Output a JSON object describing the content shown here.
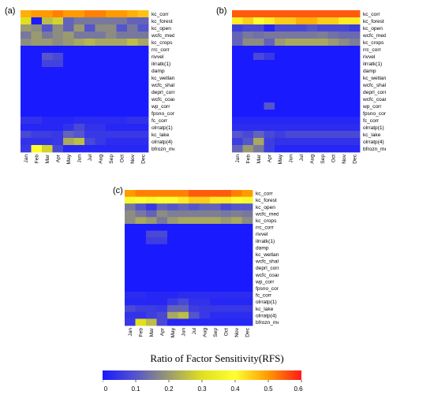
{
  "figure": {
    "colorbar_title": "Ratio of Factor Sensitivity(RFS)",
    "colorbar_ticks": [
      "0",
      "0.1",
      "0.2",
      "0.3",
      "0.4",
      "0.5",
      "0.6"
    ],
    "colorbar_range": [
      0,
      0.6
    ],
    "colorbar_colors": [
      "#1a1aff",
      "#5555cc",
      "#9a9a70",
      "#e0e020",
      "#ffff30",
      "#ff9a00",
      "#ff1a1a"
    ]
  },
  "chart_data": [
    {
      "type": "heatmap",
      "panel_label": "(a)",
      "months": [
        "Jan",
        "Feb",
        "Mar",
        "Apr",
        "May",
        "Jun",
        "Jul",
        "Aug",
        "Sep",
        "Oct",
        "Nov",
        "Dec"
      ],
      "factors": [
        "kc_corr",
        "kc_forest",
        "kc_open",
        "wcfc_medium",
        "kc_crops",
        "rrc_corr",
        "rivvel",
        "ilrratk(1)",
        "damp",
        "kc_wetland",
        "wcfc_shallow",
        "deprl_corr",
        "wcfc_coarse",
        "wp_corr",
        "fpsno_corr",
        "fc_corr",
        "olrratp(1)",
        "kc_lake",
        "olrratp(4)",
        "bfrozn_medium"
      ],
      "values": [
        [
          0.48,
          0.5,
          0.5,
          0.52,
          0.5,
          0.5,
          0.52,
          0.52,
          0.5,
          0.5,
          0.48,
          0.46
        ],
        [
          0.3,
          0.0,
          0.25,
          0.28,
          0.12,
          0.15,
          0.15,
          0.15,
          0.15,
          0.15,
          0.12,
          0.12
        ],
        [
          0.2,
          0.18,
          0.1,
          0.18,
          0.12,
          0.2,
          0.1,
          0.18,
          0.18,
          0.1,
          0.15,
          0.1
        ],
        [
          0.15,
          0.2,
          0.15,
          0.18,
          0.2,
          0.15,
          0.15,
          0.15,
          0.18,
          0.15,
          0.15,
          0.15
        ],
        [
          0.18,
          0.2,
          0.2,
          0.18,
          0.2,
          0.22,
          0.24,
          0.22,
          0.22,
          0.22,
          0.25,
          0.22
        ],
        [
          0.0,
          0.0,
          0.0,
          0.0,
          0.0,
          0.0,
          0.0,
          0.0,
          0.0,
          0.0,
          0.0,
          0.0
        ],
        [
          0.0,
          0.0,
          0.1,
          0.08,
          0.0,
          0.0,
          0.0,
          0.0,
          0.0,
          0.0,
          0.0,
          0.0
        ],
        [
          0.0,
          0.0,
          0.07,
          0.07,
          0.0,
          0.0,
          0.0,
          0.0,
          0.0,
          0.0,
          0.0,
          0.0
        ],
        [
          0.0,
          0.0,
          0.0,
          0.0,
          0.0,
          0.0,
          0.0,
          0.0,
          0.0,
          0.0,
          0.0,
          0.0
        ],
        [
          0.0,
          0.0,
          0.0,
          0.0,
          0.0,
          0.0,
          0.0,
          0.0,
          0.0,
          0.0,
          0.0,
          0.0
        ],
        [
          0.0,
          0.0,
          0.0,
          0.0,
          0.0,
          0.0,
          0.0,
          0.0,
          0.0,
          0.0,
          0.0,
          0.0
        ],
        [
          0.0,
          0.0,
          0.0,
          0.0,
          0.0,
          0.0,
          0.0,
          0.0,
          0.0,
          0.0,
          0.0,
          0.0
        ],
        [
          0.0,
          0.0,
          0.0,
          0.0,
          0.0,
          0.0,
          0.0,
          0.0,
          0.0,
          0.0,
          0.0,
          0.0
        ],
        [
          0.0,
          0.0,
          0.0,
          0.0,
          0.0,
          0.0,
          0.0,
          0.0,
          0.0,
          0.0,
          0.0,
          0.0
        ],
        [
          0.0,
          0.0,
          0.0,
          0.0,
          0.0,
          0.0,
          0.0,
          0.0,
          0.0,
          0.0,
          0.0,
          0.0
        ],
        [
          0.04,
          0.04,
          0.02,
          0.02,
          0.02,
          0.03,
          0.03,
          0.03,
          0.03,
          0.03,
          0.04,
          0.04
        ],
        [
          0.02,
          0.02,
          0.02,
          0.02,
          0.04,
          0.08,
          0.04,
          0.04,
          0.02,
          0.02,
          0.02,
          0.02
        ],
        [
          0.08,
          0.06,
          0.06,
          0.05,
          0.12,
          0.1,
          0.05,
          0.05,
          0.05,
          0.05,
          0.05,
          0.05
        ],
        [
          0.04,
          0.04,
          0.04,
          0.05,
          0.22,
          0.25,
          0.08,
          0.05,
          0.03,
          0.03,
          0.03,
          0.03
        ],
        [
          0.05,
          0.4,
          0.28,
          0.08,
          0.02,
          0.02,
          0.02,
          0.02,
          0.02,
          0.02,
          0.02,
          0.02
        ]
      ]
    },
    {
      "type": "heatmap",
      "panel_label": "(b)",
      "months": [
        "Jan",
        "Feb",
        "Mar",
        "Apr",
        "May",
        "Jun",
        "Jul",
        "Aug",
        "Sep",
        "Oct",
        "Nov",
        "Dec"
      ],
      "factors": [
        "kc_corr",
        "kc_forest",
        "kc_open",
        "wcfc_medium",
        "kc_crops",
        "rrc_corr",
        "rivvel",
        "ilrratk(1)",
        "damp",
        "kc_wetland",
        "wcfc_shallow",
        "deprl_corr",
        "wcfc_coarse",
        "wp_corr",
        "fpsno_corr",
        "fc_corr",
        "olrratp(1)",
        "kc_lake",
        "olrratp(4)",
        "bfrozn_medium"
      ],
      "values": [
        [
          0.55,
          0.55,
          0.55,
          0.55,
          0.55,
          0.55,
          0.55,
          0.55,
          0.55,
          0.55,
          0.55,
          0.55
        ],
        [
          0.42,
          0.45,
          0.4,
          0.42,
          0.45,
          0.45,
          0.48,
          0.48,
          0.45,
          0.45,
          0.42,
          0.42
        ],
        [
          0.06,
          0.08,
          0.08,
          0.02,
          0.08,
          0.08,
          0.08,
          0.1,
          0.08,
          0.08,
          0.08,
          0.06
        ],
        [
          0.12,
          0.15,
          0.14,
          0.15,
          0.15,
          0.15,
          0.15,
          0.15,
          0.16,
          0.14,
          0.13,
          0.13
        ],
        [
          0.12,
          0.18,
          0.18,
          0.12,
          0.2,
          0.22,
          0.22,
          0.22,
          0.22,
          0.2,
          0.18,
          0.16
        ],
        [
          0.0,
          0.0,
          0.0,
          0.0,
          0.0,
          0.0,
          0.0,
          0.0,
          0.0,
          0.0,
          0.0,
          0.0
        ],
        [
          0.0,
          0.0,
          0.08,
          0.05,
          0.0,
          0.0,
          0.0,
          0.0,
          0.0,
          0.0,
          0.0,
          0.0
        ],
        [
          0.0,
          0.0,
          0.0,
          0.0,
          0.0,
          0.0,
          0.0,
          0.0,
          0.0,
          0.0,
          0.0,
          0.0
        ],
        [
          0.0,
          0.0,
          0.0,
          0.0,
          0.0,
          0.0,
          0.0,
          0.0,
          0.0,
          0.0,
          0.0,
          0.0
        ],
        [
          0.0,
          0.0,
          0.0,
          0.0,
          0.0,
          0.0,
          0.0,
          0.0,
          0.0,
          0.0,
          0.0,
          0.0
        ],
        [
          0.0,
          0.0,
          0.0,
          0.0,
          0.0,
          0.0,
          0.0,
          0.0,
          0.0,
          0.0,
          0.0,
          0.0
        ],
        [
          0.0,
          0.0,
          0.0,
          0.0,
          0.0,
          0.0,
          0.0,
          0.0,
          0.0,
          0.0,
          0.0,
          0.0
        ],
        [
          0.0,
          0.0,
          0.0,
          0.0,
          0.0,
          0.0,
          0.0,
          0.0,
          0.0,
          0.0,
          0.0,
          0.0
        ],
        [
          0.0,
          0.0,
          0.0,
          0.1,
          0.0,
          0.0,
          0.0,
          0.0,
          0.0,
          0.0,
          0.0,
          0.0
        ],
        [
          0.0,
          0.0,
          0.0,
          0.0,
          0.0,
          0.0,
          0.0,
          0.0,
          0.0,
          0.0,
          0.0,
          0.0
        ],
        [
          0.02,
          0.02,
          0.02,
          0.02,
          0.02,
          0.02,
          0.02,
          0.02,
          0.02,
          0.02,
          0.02,
          0.02
        ],
        [
          0.03,
          0.03,
          0.03,
          0.03,
          0.03,
          0.03,
          0.03,
          0.03,
          0.03,
          0.03,
          0.03,
          0.03
        ],
        [
          0.1,
          0.08,
          0.12,
          0.08,
          0.06,
          0.08,
          0.08,
          0.08,
          0.08,
          0.08,
          0.08,
          0.08
        ],
        [
          0.06,
          0.1,
          0.22,
          0.06,
          0.04,
          0.04,
          0.04,
          0.04,
          0.04,
          0.04,
          0.04,
          0.04
        ],
        [
          0.12,
          0.2,
          0.15,
          0.06,
          0.02,
          0.02,
          0.02,
          0.02,
          0.02,
          0.02,
          0.02,
          0.02
        ]
      ]
    },
    {
      "type": "heatmap",
      "panel_label": "(c)",
      "months": [
        "Jan",
        "Feb",
        "Mar",
        "Apr",
        "May",
        "Jun",
        "Jul",
        "Aug",
        "Sep",
        "Oct",
        "Nov",
        "Dec"
      ],
      "factors": [
        "kc_corr",
        "kc_forest",
        "kc_open",
        "wcfc_medium",
        "kc_crops",
        "rrc_corr",
        "rivvel",
        "ilrratk(1)",
        "damp",
        "kc_wetland",
        "wcfc_shallow",
        "deprl_corr",
        "wcfc_coarse",
        "wp_corr",
        "fpsno_corr",
        "fc_corr",
        "olrratp(1)",
        "kc_lake",
        "olrratp(4)",
        "bfrozn_medium"
      ],
      "values": [
        [
          0.5,
          0.52,
          0.52,
          0.52,
          0.52,
          0.52,
          0.55,
          0.55,
          0.55,
          0.55,
          0.52,
          0.5
        ],
        [
          0.38,
          0.4,
          0.38,
          0.4,
          0.4,
          0.42,
          0.45,
          0.45,
          0.42,
          0.42,
          0.4,
          0.38
        ],
        [
          0.15,
          0.1,
          0.05,
          0.12,
          0.1,
          0.12,
          0.1,
          0.12,
          0.12,
          0.08,
          0.1,
          0.1
        ],
        [
          0.18,
          0.15,
          0.12,
          0.18,
          0.16,
          0.16,
          0.16,
          0.16,
          0.16,
          0.15,
          0.16,
          0.15
        ],
        [
          0.18,
          0.22,
          0.2,
          0.15,
          0.2,
          0.22,
          0.22,
          0.22,
          0.22,
          0.2,
          0.22,
          0.18
        ],
        [
          0.0,
          0.0,
          0.0,
          0.0,
          0.0,
          0.0,
          0.0,
          0.0,
          0.0,
          0.0,
          0.0,
          0.0
        ],
        [
          0.0,
          0.0,
          0.08,
          0.08,
          0.0,
          0.0,
          0.0,
          0.0,
          0.0,
          0.0,
          0.0,
          0.0
        ],
        [
          0.0,
          0.0,
          0.06,
          0.06,
          0.0,
          0.0,
          0.0,
          0.0,
          0.0,
          0.0,
          0.0,
          0.0
        ],
        [
          0.0,
          0.0,
          0.0,
          0.0,
          0.0,
          0.0,
          0.0,
          0.0,
          0.0,
          0.0,
          0.0,
          0.0
        ],
        [
          0.0,
          0.0,
          0.0,
          0.0,
          0.0,
          0.0,
          0.0,
          0.0,
          0.0,
          0.0,
          0.0,
          0.0
        ],
        [
          0.0,
          0.0,
          0.0,
          0.0,
          0.0,
          0.0,
          0.0,
          0.0,
          0.0,
          0.0,
          0.0,
          0.0
        ],
        [
          0.0,
          0.0,
          0.0,
          0.0,
          0.0,
          0.0,
          0.0,
          0.0,
          0.0,
          0.0,
          0.0,
          0.0
        ],
        [
          0.0,
          0.0,
          0.0,
          0.0,
          0.0,
          0.0,
          0.0,
          0.0,
          0.0,
          0.0,
          0.0,
          0.0
        ],
        [
          0.0,
          0.0,
          0.0,
          0.0,
          0.0,
          0.0,
          0.0,
          0.0,
          0.0,
          0.0,
          0.0,
          0.0
        ],
        [
          0.0,
          0.0,
          0.0,
          0.0,
          0.0,
          0.0,
          0.0,
          0.0,
          0.0,
          0.0,
          0.0,
          0.0
        ],
        [
          0.03,
          0.03,
          0.02,
          0.02,
          0.02,
          0.03,
          0.03,
          0.03,
          0.03,
          0.03,
          0.03,
          0.03
        ],
        [
          0.02,
          0.02,
          0.02,
          0.02,
          0.05,
          0.08,
          0.04,
          0.04,
          0.02,
          0.02,
          0.02,
          0.02
        ],
        [
          0.08,
          0.06,
          0.06,
          0.05,
          0.12,
          0.12,
          0.06,
          0.05,
          0.05,
          0.05,
          0.05,
          0.05
        ],
        [
          0.04,
          0.04,
          0.06,
          0.08,
          0.22,
          0.25,
          0.1,
          0.05,
          0.03,
          0.03,
          0.03,
          0.03
        ],
        [
          0.05,
          0.3,
          0.25,
          0.08,
          0.02,
          0.02,
          0.02,
          0.02,
          0.02,
          0.02,
          0.02,
          0.02
        ]
      ]
    }
  ]
}
